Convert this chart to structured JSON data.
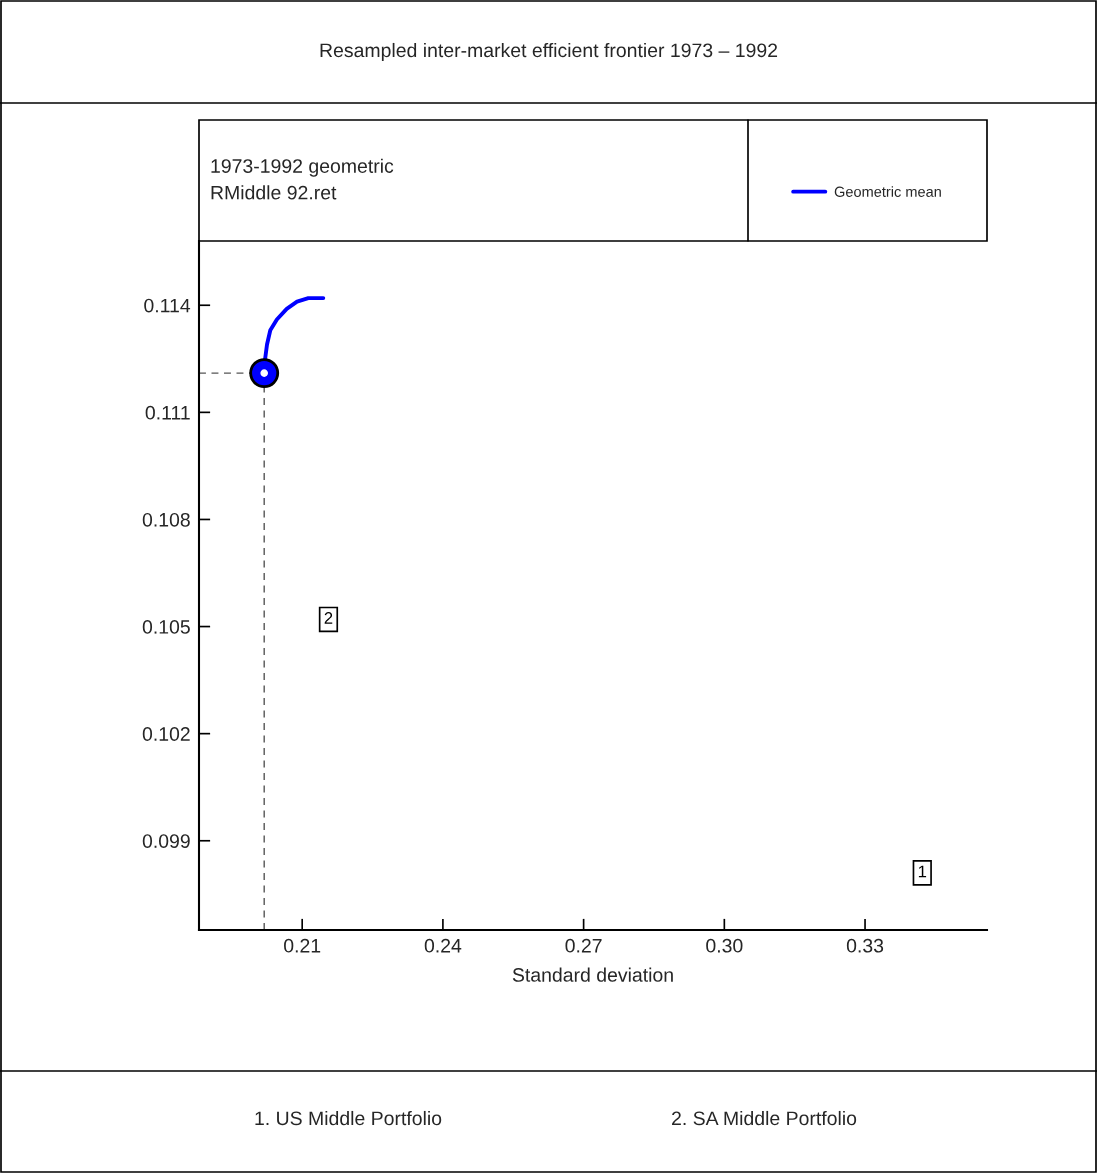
{
  "chart_data": {
    "type": "line",
    "title": "Resampled inter-market efficient frontier 1973 – 1992",
    "subtitle": "1973-1992 geometric\nRMiddle 92.ret",
    "xlabel": "Standard deviation",
    "xlim": [
      0.188,
      0.356
    ],
    "xticks": [
      {
        "value": 0.21,
        "label": "0.21"
      },
      {
        "value": 0.24,
        "label": "0.24"
      },
      {
        "value": 0.27,
        "label": "0.27"
      },
      {
        "value": 0.3,
        "label": "0.30"
      },
      {
        "value": 0.33,
        "label": "0.33"
      }
    ],
    "ylim": [
      0.0965,
      0.1158
    ],
    "yticks": [
      {
        "value": 0.099,
        "label": "0.099"
      },
      {
        "value": 0.102,
        "label": "0.102"
      },
      {
        "value": 0.105,
        "label": "0.105"
      },
      {
        "value": 0.108,
        "label": "0.108"
      },
      {
        "value": 0.111,
        "label": "0.111"
      },
      {
        "value": 0.114,
        "label": "0.114"
      }
    ],
    "series": [
      {
        "name": "Geometric mean",
        "color": "#0000ff",
        "x": [
          0.2019,
          0.2021,
          0.2025,
          0.2032,
          0.2046,
          0.2067,
          0.2089,
          0.2113,
          0.2145
        ],
        "values": [
          0.1124,
          0.1125,
          0.1129,
          0.1133,
          0.1136,
          0.1139,
          0.1141,
          0.1142,
          0.1142
        ]
      },
      {
        "type": "scatter",
        "marker": "circle",
        "color": "#0000ff",
        "x": [
          0.2019
        ],
        "values": [
          0.1121
        ]
      }
    ],
    "ref_lines": [
      {
        "axis": "x",
        "value": 0.2019,
        "line_style": "dashed",
        "color": "#555555"
      },
      {
        "axis": "y",
        "value": 0.1121,
        "line_style": "dashed",
        "color": "#555555"
      }
    ],
    "legend": "top right",
    "grid": false,
    "annotations": [
      {
        "text": "1",
        "x": 0.3422,
        "y": 0.0981
      },
      {
        "text": "2",
        "x": 0.2156,
        "y": 0.1052
      },
      "1. US Middle Portfolio",
      "2. SA Middle Portfolio"
    ]
  }
}
